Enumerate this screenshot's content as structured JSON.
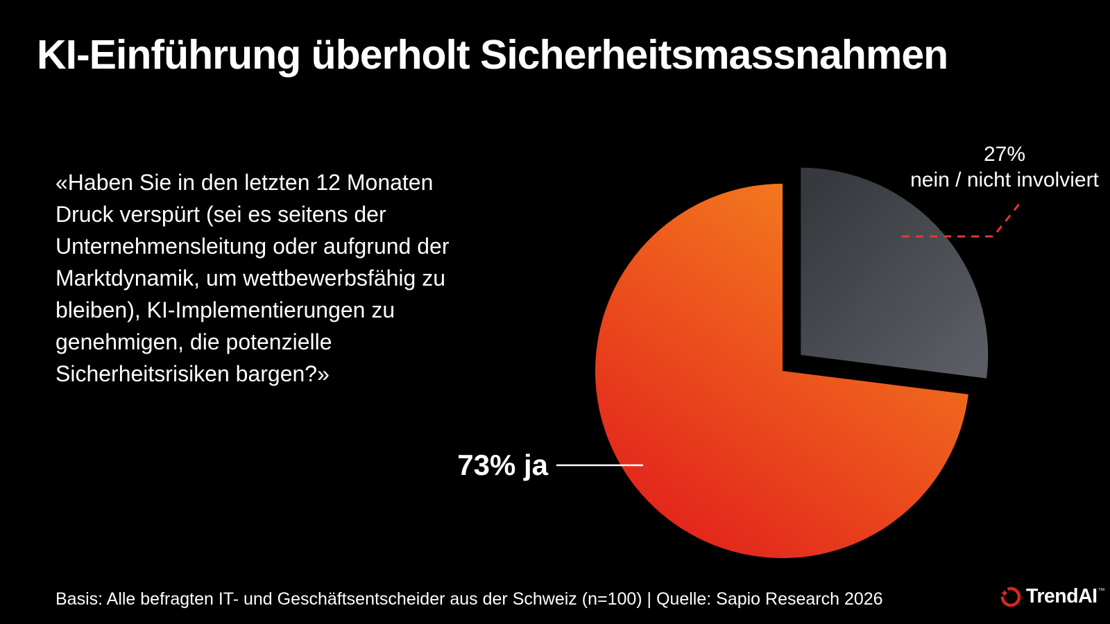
{
  "title": "KI-Einführung überholt Sicherheitsmassnahmen",
  "quote_lines": [
    "«Haben Sie in den letzten 12 Monaten",
    "Druck verspürt (sei es seitens der",
    "Unternehmensleitung oder aufgrund der",
    "Marktdynamik, um wettbewerbsfähig zu",
    "bleiben), KI-Implementierungen zu",
    "genehmigen, die potenzielle",
    "Sicherheitsrisiken bargen?»"
  ],
  "chart_data": {
    "type": "pie",
    "unit": "percent",
    "start_angle_deg": 0,
    "direction": "clockwise",
    "slices": [
      {
        "label": "nein / nicht involviert",
        "value": 27,
        "display": "27%",
        "exploded": true,
        "color_start": "#36393e",
        "color_end": "#5a5e64"
      },
      {
        "label": "ja",
        "value": 73,
        "display": "73% ja",
        "exploded": false,
        "color_start": "#f6861e",
        "color_end": "#e2211c"
      }
    ],
    "legend_position": "callout-labels",
    "grid": false
  },
  "callouts": {
    "ja": {
      "text": "73% ja"
    },
    "nein": {
      "line1": "27%",
      "line2": "nein / nicht involviert"
    }
  },
  "footer": {
    "basis": "Basis: Alle befragten IT- und Geschäftsentscheider aus der Schweiz (n=100) | Quelle: Sapio Research 2026"
  },
  "logo": {
    "text": "TrendAI",
    "trademark": "™",
    "color": "#d7271f"
  },
  "colors": {
    "background": "#000000",
    "text": "#ffffff",
    "callout_white": "#ffffff",
    "callout_dash_red": "#e23a30"
  }
}
